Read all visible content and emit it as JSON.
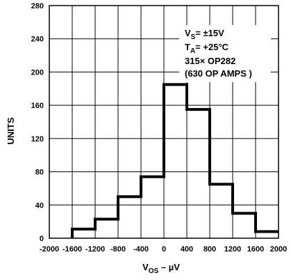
{
  "chart_data": {
    "type": "bar",
    "ylabel": "UNITS",
    "xlabel_main": "V",
    "xlabel_sub": "OS",
    "xlabel_tail": " – µV",
    "xlim": [
      -2000,
      2000
    ],
    "ylim": [
      0,
      280
    ],
    "x_ticks": [
      -2000,
      -1600,
      -1200,
      -800,
      -400,
      0,
      400,
      800,
      1200,
      1600,
      2000
    ],
    "y_ticks": [
      0,
      40,
      80,
      120,
      160,
      200,
      240,
      280
    ],
    "grid": true,
    "bins": [
      {
        "x0": -1600,
        "x1": -1200,
        "value": 11
      },
      {
        "x0": -1200,
        "x1": -800,
        "value": 23
      },
      {
        "x0": -800,
        "x1": -400,
        "value": 50
      },
      {
        "x0": -400,
        "x1": 0,
        "value": 74
      },
      {
        "x0": 0,
        "x1": 400,
        "value": 185
      },
      {
        "x0": 400,
        "x1": 800,
        "value": 155
      },
      {
        "x0": 800,
        "x1": 1200,
        "value": 65
      },
      {
        "x0": 1200,
        "x1": 1600,
        "value": 30
      },
      {
        "x0": 1600,
        "x1": 2000,
        "value": 8
      }
    ],
    "annotation": {
      "line1_main": "V",
      "line1_sub": "S",
      "line1_tail": "= ±15V",
      "line2_main": "T",
      "line2_sub": "A",
      "line2_tail": "= +25°C",
      "line3": "315× OP282",
      "line4": "(630 OP  AMPS )"
    }
  }
}
